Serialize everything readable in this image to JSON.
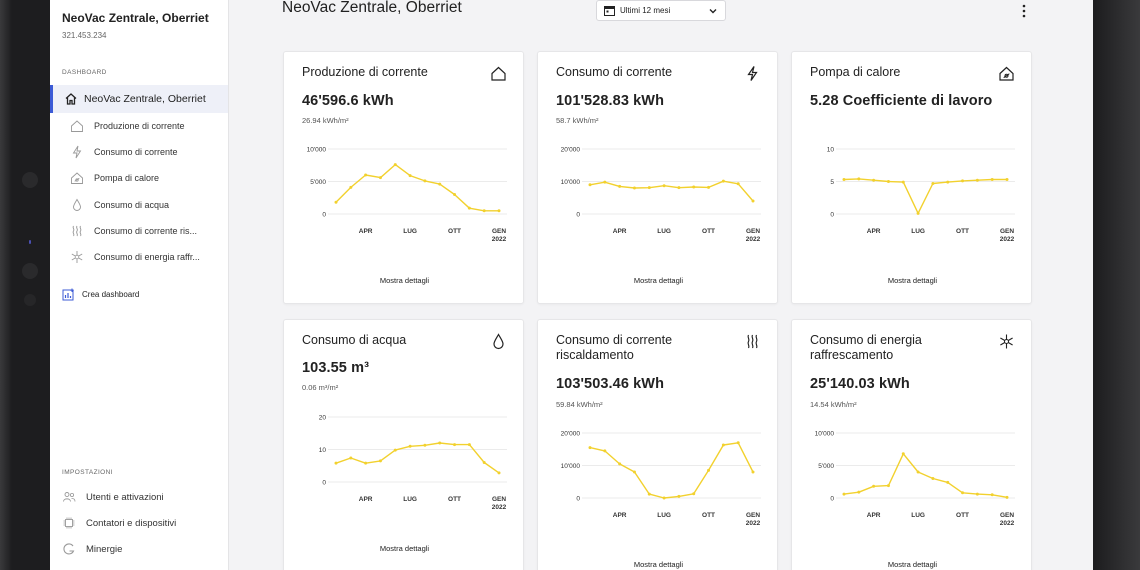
{
  "sidebar": {
    "site_name": "NeoVac Zentrale, Oberriet",
    "site_id": "321.453.234",
    "dashboard_section": "DASHBOARD",
    "main_item": "NeoVac Zentrale, Oberriet",
    "sub_items": [
      {
        "label": "Produzione di corrente",
        "icon": "house-icon"
      },
      {
        "label": "Consumo di corrente",
        "icon": "lightning-icon"
      },
      {
        "label": "Pompa di calore",
        "icon": "heat-pump-icon"
      },
      {
        "label": "Consumo di acqua",
        "icon": "droplet-icon"
      },
      {
        "label": "Consumo di corrente ris...",
        "icon": "heating-icon"
      },
      {
        "label": "Consumo di energia raffr...",
        "icon": "snowflake-icon"
      }
    ],
    "create_dashboard": "Crea dashboard",
    "settings_section": "IMPOSTAZIONI",
    "settings_items": [
      {
        "label": "Utenti e attivazioni",
        "icon": "users-icon"
      },
      {
        "label": "Contatori e dispositivi",
        "icon": "chip-icon"
      },
      {
        "label": "Minergie",
        "icon": "minergie-icon"
      }
    ]
  },
  "header": {
    "title": "NeoVac Zentrale, Oberriet",
    "period": "Ultimi 12 mesi"
  },
  "colors": {
    "accent": "#3c5bd6",
    "line": "#f2d12e",
    "grid": "#e4e4e4"
  },
  "cards": [
    {
      "title": "Produzione di corrente",
      "icon": "house-icon",
      "value": "46'596.6 kWh",
      "per_area": "26.94 kWh/m²",
      "link": "Mostra dettagli"
    },
    {
      "title": "Consumo di corrente",
      "icon": "lightning-icon",
      "value": "101'528.83 kWh",
      "per_area": "58.7 kWh/m²",
      "link": "Mostra dettagli"
    },
    {
      "title": "Pompa di calore",
      "icon": "heat-pump-icon",
      "value": "5.28 Coefficiente di lavoro",
      "per_area": "",
      "link": "Mostra dettagli"
    },
    {
      "title": "Consumo di acqua",
      "icon": "droplet-icon",
      "value": "103.55 m³",
      "per_area": "0.06 m³/m²",
      "link": "Mostra dettagli"
    },
    {
      "title": "Consumo di corrente riscaldamento",
      "icon": "heating-icon",
      "value": "103'503.46 kWh",
      "per_area": "59.84 kWh/m²",
      "link": "Mostra dettagli"
    },
    {
      "title": "Consumo di energia raffrescamento",
      "icon": "snowflake-icon",
      "value": "25'140.03 kWh",
      "per_area": "14.54 kWh/m²",
      "link": "Mostra dettagli"
    }
  ],
  "chart_data": [
    {
      "type": "line",
      "x_ticks": [
        "APR",
        "LUG",
        "OTT",
        "GEN"
      ],
      "x_tick_year": "2022",
      "y_ticks": [
        "0",
        "5'000",
        "10'000"
      ],
      "ylim": [
        0,
        10000
      ],
      "values": [
        1800,
        4100,
        6000,
        5600,
        7600,
        5900,
        5100,
        4600,
        3000,
        900,
        500,
        500
      ]
    },
    {
      "type": "line",
      "x_ticks": [
        "APR",
        "LUG",
        "OTT",
        "GEN"
      ],
      "x_tick_year": "2022",
      "y_ticks": [
        "0",
        "10'000",
        "20'000"
      ],
      "ylim": [
        0,
        20000
      ],
      "values": [
        9000,
        9800,
        8500,
        8000,
        8100,
        8700,
        8100,
        8300,
        8200,
        10100,
        9300,
        4000
      ]
    },
    {
      "type": "line",
      "x_ticks": [
        "APR",
        "LUG",
        "OTT",
        "GEN"
      ],
      "x_tick_year": "2022",
      "y_ticks": [
        "0",
        "5",
        "10"
      ],
      "ylim": [
        0,
        10
      ],
      "values": [
        5.3,
        5.4,
        5.2,
        5.0,
        4.9,
        0.1,
        4.7,
        4.9,
        5.1,
        5.2,
        5.3,
        5.3
      ]
    },
    {
      "type": "line",
      "x_ticks": [
        "APR",
        "LUG",
        "OTT",
        "GEN"
      ],
      "x_tick_year": "2022",
      "y_ticks": [
        "0",
        "10",
        "20"
      ],
      "ylim": [
        0,
        20
      ],
      "values": [
        5.8,
        7.4,
        5.8,
        6.5,
        9.8,
        11.0,
        11.3,
        12.0,
        11.5,
        11.5,
        6.0,
        2.8
      ]
    },
    {
      "type": "line",
      "x_ticks": [
        "APR",
        "LUG",
        "OTT",
        "GEN"
      ],
      "x_tick_year": "2022",
      "y_ticks": [
        "0",
        "10'000",
        "20'000"
      ],
      "ylim": [
        0,
        20000
      ],
      "values": [
        15500,
        14500,
        10500,
        8000,
        1200,
        0,
        500,
        1300,
        8500,
        16300,
        17000,
        8000
      ]
    },
    {
      "type": "line",
      "x_ticks": [
        "APR",
        "LUG",
        "OTT",
        "GEN"
      ],
      "x_tick_year": "2022",
      "y_ticks": [
        "0",
        "5'000",
        "10'000"
      ],
      "ylim": [
        0,
        10000
      ],
      "values": [
        600,
        900,
        1800,
        1900,
        6800,
        4000,
        3000,
        2400,
        800,
        600,
        500,
        100
      ]
    }
  ]
}
